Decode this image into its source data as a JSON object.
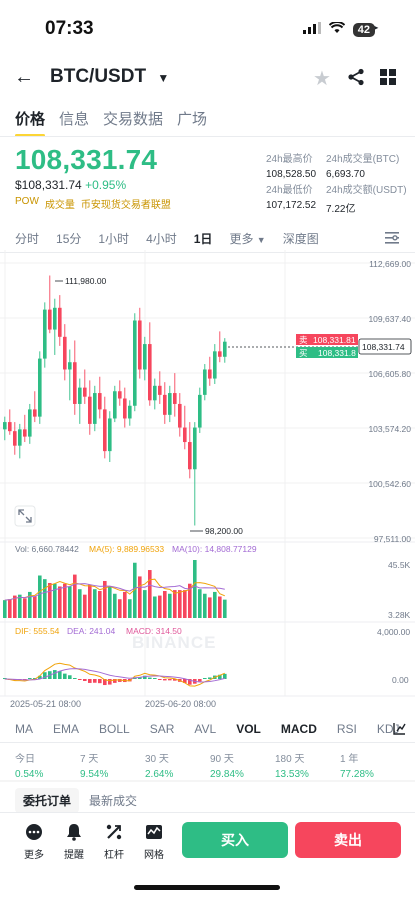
{
  "status": {
    "time": "07:33",
    "battery": "42"
  },
  "header": {
    "pair": "BTC/USDT"
  },
  "tabs": [
    "价格",
    "信息",
    "交易数据",
    "广场"
  ],
  "price": {
    "last": "108,331.74",
    "usd": "$108,331.74",
    "change": "+0.95%",
    "tags": [
      "POW",
      "成交量",
      "币安现货交易者联盟"
    ]
  },
  "stats": {
    "high_label": "24h最高价",
    "high": "108,528.50",
    "vol_btc_label": "24h成交量(BTC)",
    "vol_btc": "6,693.70",
    "low_label": "24h最低价",
    "low": "107,172.52",
    "vol_usdt_label": "24h成交额(USDT)",
    "vol_usdt": "7.22亿"
  },
  "timeframes": [
    "分时",
    "15分",
    "1小时",
    "4小时",
    "1日",
    "更多",
    "深度图"
  ],
  "chart": {
    "y_ticks": [
      "112,669.00",
      "109,637.40",
      "106,605.80",
      "103,574.20",
      "100,542.60",
      "97,511.00"
    ],
    "high_marker": "111,980.00",
    "low_marker": "98,200.00",
    "last_tag": "108,331.74",
    "ask_label": "卖",
    "ask": "108,331.81",
    "bid_label": "买",
    "bid": "108,331.8",
    "watermark": "BINANCE",
    "vol_legend": {
      "vol": "Vol: 6,660.78442",
      "ma5": "MA(5): 9,889.96533",
      "ma10": "MA(10): 14,808.77129"
    },
    "vol_ticks": [
      "45.5K",
      "3.28K"
    ],
    "macd_legend": {
      "dif": "DIF: 555.54",
      "dea": "DEA: 241.04",
      "macd": "MACD: 314.50"
    },
    "macd_ticks": [
      "4,000.00",
      "0.00"
    ],
    "dates": [
      "2025-05-21 08:00",
      "2025-06-20 08:00"
    ]
  },
  "indicators": [
    "MA",
    "EMA",
    "BOLL",
    "SAR",
    "AVL",
    "VOL",
    "MACD",
    "RSI",
    "KDJ"
  ],
  "performance": [
    {
      "period": "今日",
      "value": "0.54%"
    },
    {
      "period": "7 天",
      "value": "9.54%"
    },
    {
      "period": "30 天",
      "value": "2.64%"
    },
    {
      "period": "90 天",
      "value": "29.84%"
    },
    {
      "period": "180 天",
      "value": "13.53%"
    },
    {
      "period": "1 年",
      "value": "77.28%"
    }
  ],
  "order_tabs": [
    "委托订单",
    "最新成交"
  ],
  "actions": [
    "更多",
    "提醒",
    "杠杆",
    "网格"
  ],
  "buttons": {
    "buy": "买入",
    "sell": "卖出"
  },
  "colors": {
    "up": "#2ebd85",
    "down": "#f6465d",
    "accent": "#fcd535"
  },
  "chart_data": {
    "type": "candlestick",
    "y_range": [
      97511,
      112669
    ],
    "candles": [
      [
        103500,
        104200,
        102900,
        103900
      ],
      [
        103900,
        104600,
        103200,
        103400
      ],
      [
        103400,
        103900,
        102100,
        102600
      ],
      [
        102600,
        103800,
        101900,
        103500
      ],
      [
        103500,
        104300,
        102800,
        103100
      ],
      [
        103100,
        104900,
        102700,
        104600
      ],
      [
        104600,
        105600,
        103900,
        104200
      ],
      [
        104200,
        107800,
        103800,
        107400
      ],
      [
        107400,
        110500,
        106900,
        110100
      ],
      [
        110100,
        111980,
        108800,
        109000
      ],
      [
        109000,
        110700,
        107600,
        110200
      ],
      [
        110200,
        110900,
        108100,
        108600
      ],
      [
        108600,
        109300,
        106200,
        106800
      ],
      [
        106800,
        107900,
        105100,
        107200
      ],
      [
        107200,
        108400,
        104300,
        104900
      ],
      [
        104900,
        106300,
        103800,
        105800
      ],
      [
        105800,
        106800,
        104900,
        105300
      ],
      [
        105300,
        106200,
        103200,
        103800
      ],
      [
        103800,
        105900,
        103400,
        105500
      ],
      [
        105500,
        106400,
        104100,
        104600
      ],
      [
        104600,
        105300,
        101900,
        102300
      ],
      [
        102300,
        104500,
        101700,
        104100
      ],
      [
        104100,
        105900,
        103900,
        105600
      ],
      [
        105600,
        106200,
        104800,
        105200
      ],
      [
        105200,
        105800,
        103600,
        104100
      ],
      [
        104100,
        105100,
        103700,
        104800
      ],
      [
        104800,
        109900,
        104500,
        109500
      ],
      [
        109500,
        110200,
        106300,
        106800
      ],
      [
        106800,
        108600,
        106200,
        108200
      ],
      [
        108200,
        109400,
        104800,
        105100
      ],
      [
        105100,
        106300,
        104600,
        105900
      ],
      [
        105900,
        106700,
        104900,
        105400
      ],
      [
        105400,
        106100,
        103800,
        104300
      ],
      [
        104300,
        105900,
        103900,
        105500
      ],
      [
        105500,
        106600,
        104200,
        104900
      ],
      [
        104900,
        105500,
        103100,
        103600
      ],
      [
        103600,
        104800,
        102400,
        102800
      ],
      [
        102800,
        103900,
        100800,
        101300
      ],
      [
        101300,
        103900,
        98200,
        103600
      ],
      [
        103600,
        105800,
        103300,
        105400
      ],
      [
        105400,
        107100,
        105100,
        106800
      ],
      [
        106800,
        107500,
        105900,
        106300
      ],
      [
        106300,
        108200,
        106000,
        107800
      ],
      [
        107800,
        108900,
        107200,
        107500
      ],
      [
        107500,
        108528,
        107172,
        108331
      ]
    ],
    "volume_ticks": [
      "45.5K",
      "3.28K"
    ],
    "macd_ticks": [
      "4,000.00",
      "0.00"
    ]
  }
}
